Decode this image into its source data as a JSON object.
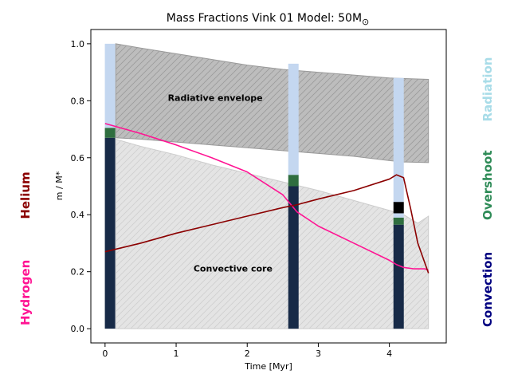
{
  "chart_data": {
    "type": "area",
    "title": "Mass Fractions Vink 01 Model: 50M",
    "title_symbol": "⊙",
    "xlabel": "Time [Myr]",
    "ylabel": "m / M*",
    "xlim": [
      -0.2,
      4.8
    ],
    "ylim": [
      -0.05,
      1.05
    ],
    "xticks": [
      0,
      1,
      2,
      3,
      4
    ],
    "yticks": [
      0.0,
      0.2,
      0.4,
      0.6,
      0.8,
      1.0
    ],
    "grid": false,
    "region_labels": {
      "radiative": "Radiative envelope",
      "convective": "Convective core"
    },
    "envelope_top": {
      "x": [
        0.15,
        0.5,
        1.0,
        1.5,
        2.0,
        2.5,
        3.0,
        3.5,
        4.0,
        4.2,
        4.55
      ],
      "y": [
        1.0,
        0.985,
        0.965,
        0.945,
        0.925,
        0.91,
        0.9,
        0.89,
        0.88,
        0.878,
        0.875
      ]
    },
    "envelope_bottom": {
      "x": [
        0.15,
        0.5,
        1.0,
        1.5,
        2.0,
        2.5,
        3.0,
        3.5,
        4.0,
        4.2,
        4.55
      ],
      "y": [
        0.67,
        0.665,
        0.655,
        0.645,
        0.635,
        0.625,
        0.615,
        0.605,
        0.59,
        0.585,
        0.583
      ]
    },
    "core_top": {
      "x": [
        0.15,
        0.5,
        1.0,
        1.5,
        2.0,
        2.5,
        3.0,
        3.5,
        4.0,
        4.2,
        4.4,
        4.55
      ],
      "y": [
        0.665,
        0.64,
        0.61,
        0.575,
        0.545,
        0.515,
        0.485,
        0.45,
        0.415,
        0.4,
        0.37,
        0.395
      ]
    },
    "series": [
      {
        "name": "Hydrogen",
        "color": "#ff1493",
        "x": [
          0.0,
          0.5,
          1.0,
          1.5,
          2.0,
          2.5,
          2.7,
          3.0,
          3.5,
          4.0,
          4.1,
          4.2,
          4.35,
          4.5,
          4.55
        ],
        "y": [
          0.72,
          0.685,
          0.645,
          0.6,
          0.55,
          0.47,
          0.41,
          0.36,
          0.3,
          0.24,
          0.225,
          0.215,
          0.21,
          0.21,
          0.205
        ]
      },
      {
        "name": "Helium",
        "color": "#8b0000",
        "x": [
          0.0,
          0.5,
          1.0,
          1.5,
          2.0,
          2.5,
          2.7,
          3.0,
          3.5,
          4.0,
          4.1,
          4.2,
          4.3,
          4.4,
          4.5,
          4.55
        ],
        "y": [
          0.27,
          0.3,
          0.335,
          0.365,
          0.395,
          0.425,
          0.435,
          0.455,
          0.485,
          0.525,
          0.54,
          0.53,
          0.42,
          0.3,
          0.23,
          0.195
        ]
      }
    ],
    "profile_bars": [
      {
        "t": 0.07,
        "segments": [
          {
            "kind": "Convection",
            "from": 0.0,
            "to": 0.67
          },
          {
            "kind": "Overshoot",
            "from": 0.67,
            "to": 0.705
          },
          {
            "kind": "Radiation",
            "from": 0.705,
            "to": 1.0
          }
        ]
      },
      {
        "t": 2.65,
        "segments": [
          {
            "kind": "Convection",
            "from": 0.0,
            "to": 0.5
          },
          {
            "kind": "Overshoot",
            "from": 0.5,
            "to": 0.54
          },
          {
            "kind": "Radiation",
            "from": 0.54,
            "to": 0.93
          }
        ]
      },
      {
        "t": 4.13,
        "segments": [
          {
            "kind": "Convection",
            "from": 0.0,
            "to": 0.365
          },
          {
            "kind": "Overshoot",
            "from": 0.365,
            "to": 0.39
          },
          {
            "kind": "Radiation",
            "from": 0.39,
            "to": 0.405
          },
          {
            "kind": "Black",
            "from": 0.405,
            "to": 0.445
          },
          {
            "kind": "Radiation",
            "from": 0.445,
            "to": 0.88
          }
        ]
      }
    ],
    "legend": {
      "left": [
        {
          "label": "Helium",
          "color": "#8b0000"
        },
        {
          "label": "Hydrogen",
          "color": "#ff1493"
        }
      ],
      "right": [
        {
          "label": "Radiation",
          "color": "#a8dce8"
        },
        {
          "label": "Overshoot",
          "color": "#2e8b57"
        },
        {
          "label": "Convection",
          "color": "#000080"
        }
      ]
    },
    "colors": {
      "envelope_fill": "#bdbdbd",
      "core_fill": "#e4e4e4",
      "Convection": "#172a47",
      "Overshoot": "#2f6e3f",
      "Radiation": "#c4d7f0",
      "Black": "#000000"
    }
  }
}
